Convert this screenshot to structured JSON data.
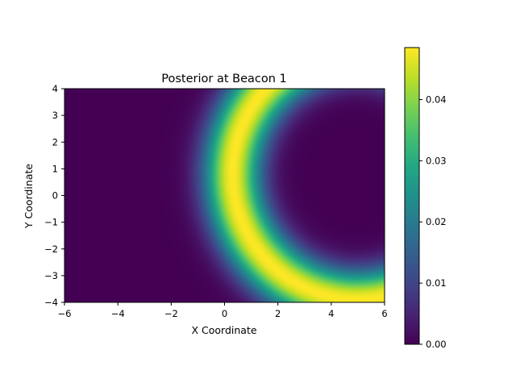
{
  "chart_data": {
    "type": "heatmap",
    "title": "Posterior at Beacon 1",
    "xlabel": "X Coordinate",
    "ylabel": "Y Coordinate",
    "xlim": [
      -6,
      6
    ],
    "ylim": [
      -4,
      4
    ],
    "x_ticks": [
      -6,
      -4,
      -2,
      0,
      2,
      4,
      6
    ],
    "x_tick_labels": [
      "−6",
      "−4",
      "−2",
      "0",
      "2",
      "4",
      "6"
    ],
    "y_ticks": [
      -4,
      -3,
      -2,
      -1,
      0,
      1,
      2,
      3,
      4
    ],
    "y_tick_labels": [
      "−4",
      "−3",
      "−2",
      "−1",
      "0",
      "1",
      "2",
      "3",
      "4"
    ],
    "colormap": "viridis",
    "colorbar": {
      "min": 0,
      "max": 0.0485,
      "ticks": [
        0,
        0.01,
        0.02,
        0.03,
        0.04
      ],
      "tick_labels": [
        "0.00",
        "0.01",
        "0.02",
        "0.03",
        "0.04"
      ]
    },
    "field": {
      "shape": "ring",
      "beacon_center": [
        5,
        0.8
      ],
      "ring_radius": 4.7,
      "ring_width_sigma": 0.75,
      "peak_value": 0.0485
    },
    "grid": false
  }
}
